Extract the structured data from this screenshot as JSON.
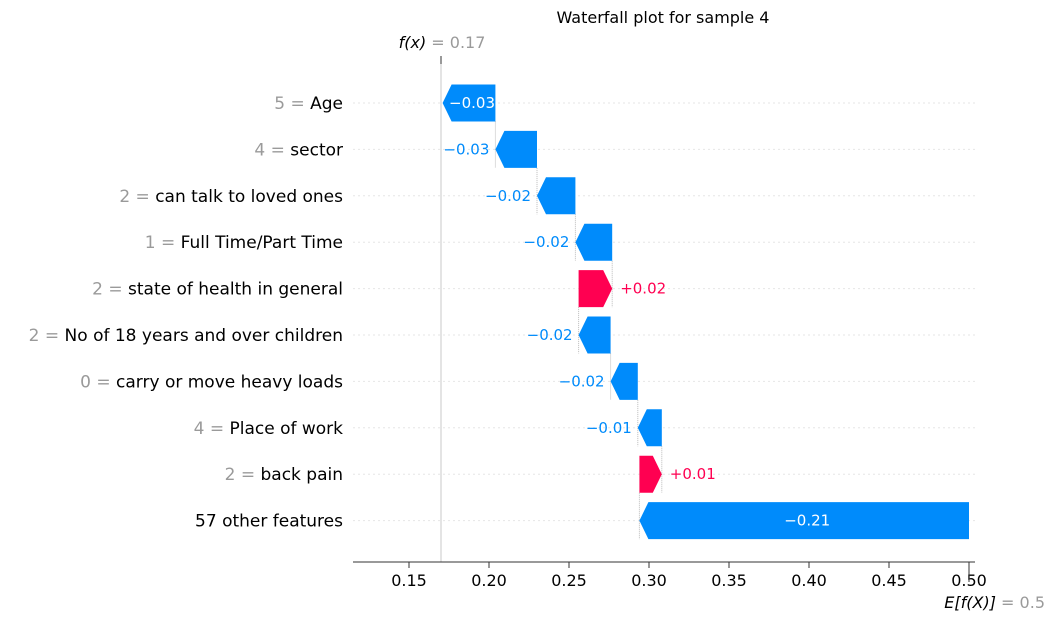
{
  "chart_data": {
    "type": "waterfall",
    "title": "Waterfall plot for sample 4",
    "fx": {
      "label": "f(x)",
      "value_text": "= 0.17",
      "value": 0.17
    },
    "efx": {
      "label": "E[f(X)]",
      "value_text": "= 0.5",
      "value": 0.5
    },
    "xlim": [
      0.115,
      0.5
    ],
    "xticks": [
      0.15,
      0.2,
      0.25,
      0.3,
      0.35,
      0.4,
      0.45,
      0.5
    ],
    "xtick_labels": [
      "0.15",
      "0.20",
      "0.25",
      "0.30",
      "0.35",
      "0.40",
      "0.45",
      "0.50"
    ],
    "features": [
      {
        "value": "5",
        "name": "Age",
        "contribution": -0.033,
        "label": "−0.03",
        "start": 0.204,
        "end": 0.171
      },
      {
        "value": "4",
        "name": "sector",
        "contribution": -0.026,
        "label": "−0.03",
        "start": 0.23,
        "end": 0.204
      },
      {
        "value": "2",
        "name": "can talk to loved ones",
        "contribution": -0.024,
        "label": "−0.02",
        "start": 0.254,
        "end": 0.23
      },
      {
        "value": "1",
        "name": "Full Time/Part Time",
        "contribution": -0.023,
        "label": "−0.02",
        "start": 0.277,
        "end": 0.254
      },
      {
        "value": "2",
        "name": "state of health in general",
        "contribution": 0.021,
        "label": "+0.02",
        "start": 0.256,
        "end": 0.277
      },
      {
        "value": "2",
        "name": "No of 18 years and over children",
        "contribution": -0.02,
        "label": "−0.02",
        "start": 0.276,
        "end": 0.256
      },
      {
        "value": "0",
        "name": "carry or move heavy loads",
        "contribution": -0.017,
        "label": "−0.02",
        "start": 0.293,
        "end": 0.276
      },
      {
        "value": "4",
        "name": "Place of work",
        "contribution": -0.015,
        "label": "−0.01",
        "start": 0.308,
        "end": 0.293
      },
      {
        "value": "2",
        "name": "back pain",
        "contribution": 0.014,
        "label": "+0.01",
        "start": 0.294,
        "end": 0.308
      },
      {
        "value": "",
        "name": "57 other features",
        "contribution": -0.206,
        "label": "−0.21",
        "start": 0.5,
        "end": 0.294
      }
    ],
    "colors": {
      "positive": "#ff0051",
      "negative": "#008bfb",
      "value_gray": "#9a9a9a"
    }
  }
}
